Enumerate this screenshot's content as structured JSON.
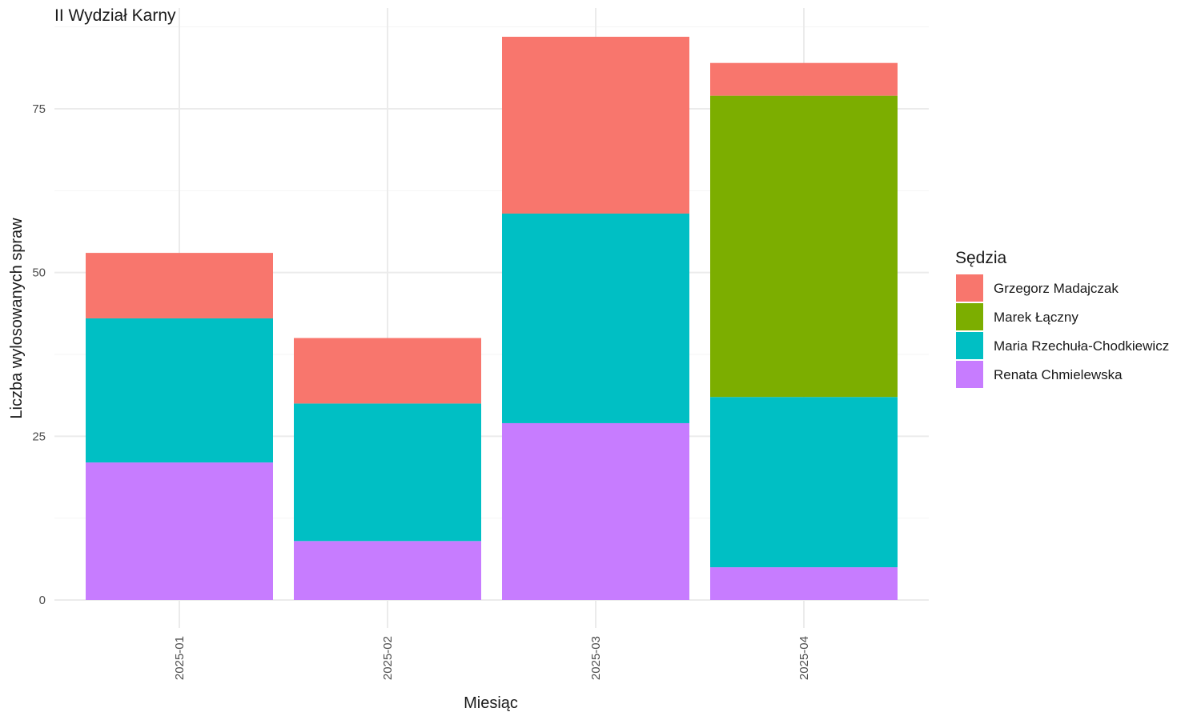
{
  "chart_data": {
    "type": "bar",
    "stacked": true,
    "title": "II Wydział Karny",
    "xlabel": "Miesiąc",
    "ylabel": "Liczba wylosowanych spraw",
    "categories": [
      "2025-01",
      "2025-02",
      "2025-03",
      "2025-04"
    ],
    "ylim": [
      0,
      90
    ],
    "yticks": [
      0,
      25,
      50,
      75
    ],
    "grid": true,
    "legend": {
      "title": "Sędzia",
      "position": "right"
    },
    "series": [
      {
        "name": "Renata Chmielewska",
        "color": "#C77CFF",
        "values": [
          21,
          9,
          27,
          5
        ]
      },
      {
        "name": "Maria Rzechuła-Chodkiewicz",
        "color": "#00BFC4",
        "values": [
          22,
          21,
          32,
          26
        ]
      },
      {
        "name": "Marek Łączny",
        "color": "#7CAE00",
        "values": [
          0,
          0,
          0,
          46
        ]
      },
      {
        "name": "Grzegorz Madajczak",
        "color": "#F8766D",
        "values": [
          10,
          10,
          27,
          5
        ]
      }
    ],
    "legend_order": [
      "Grzegorz Madajczak",
      "Marek Łączny",
      "Maria Rzechuła-Chodkiewicz",
      "Renata Chmielewska"
    ]
  }
}
